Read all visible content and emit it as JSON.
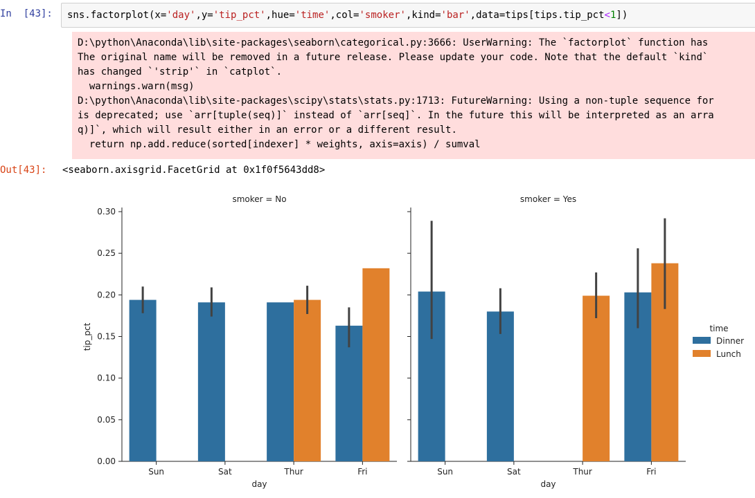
{
  "cell": {
    "in_prompt": "In  [43]:",
    "code_tokens": [
      {
        "t": "sns.factorplot(x=",
        "c": ""
      },
      {
        "t": "'day'",
        "c": "str"
      },
      {
        "t": ",y=",
        "c": ""
      },
      {
        "t": "'tip_pct'",
        "c": "str"
      },
      {
        "t": ",hue=",
        "c": ""
      },
      {
        "t": "'time'",
        "c": "str"
      },
      {
        "t": ",col=",
        "c": ""
      },
      {
        "t": "'smoker'",
        "c": "str"
      },
      {
        "t": ",kind=",
        "c": ""
      },
      {
        "t": "'bar'",
        "c": "str"
      },
      {
        "t": ",data=tips[tips.tip_pct",
        "c": ""
      },
      {
        "t": "<",
        "c": "op"
      },
      {
        "t": "1",
        "c": "num"
      },
      {
        "t": "])",
        "c": ""
      }
    ],
    "stderr_lines": [
      "D:\\python\\Anaconda\\lib\\site-packages\\seaborn\\categorical.py:3666: UserWarning: The `factorplot` function has",
      "The original name will be removed in a future release. Please update your code. Note that the default `kind`",
      "has changed `'strip'` in `catplot`.",
      "  warnings.warn(msg)",
      "D:\\python\\Anaconda\\lib\\site-packages\\scipy\\stats\\stats.py:1713: FutureWarning: Using a non-tuple sequence for",
      "is deprecated; use `arr[tuple(seq)]` instead of `arr[seq]`. In the future this will be interpreted as an arra",
      "q)]`, which will result either in an error or a different result.",
      "  return np.add.reduce(sorted[indexer] * weights, axis=axis) / sumval"
    ],
    "out_prompt": "Out[43]:",
    "out_text": "<seaborn.axisgrid.FacetGrid at 0x1f0f5643dd8>"
  },
  "chart_data": {
    "type": "bar",
    "ylabel": "tip_pct",
    "ylim": [
      0,
      0.3
    ],
    "yticks": [
      "0.00",
      "0.05",
      "0.10",
      "0.15",
      "0.20",
      "0.25",
      "0.30"
    ],
    "categories": [
      "Sun",
      "Sat",
      "Thur",
      "Fri"
    ],
    "legend": {
      "title": "time",
      "position": "right",
      "entries": [
        "Dinner",
        "Lunch"
      ]
    },
    "colors": {
      "Dinner": "#2e6f9e",
      "Lunch": "#e1812c",
      "errorbar": "#424242"
    },
    "panels": [
      {
        "title": "smoker = No",
        "xlabel": "day",
        "series": [
          {
            "name": "Dinner",
            "values": [
              0.194,
              0.191,
              0.191,
              0.163
            ],
            "err_lo": [
              0.178,
              0.174,
              null,
              0.137
            ],
            "err_hi": [
              0.21,
              0.209,
              null,
              0.185
            ]
          },
          {
            "name": "Lunch",
            "values": [
              null,
              null,
              0.194,
              0.232
            ],
            "err_lo": [
              null,
              null,
              0.177,
              null
            ],
            "err_hi": [
              null,
              null,
              0.211,
              null
            ]
          }
        ]
      },
      {
        "title": "smoker = Yes",
        "xlabel": "day",
        "series": [
          {
            "name": "Dinner",
            "values": [
              0.204,
              0.18,
              null,
              0.203
            ],
            "err_lo": [
              0.147,
              0.153,
              null,
              0.16
            ],
            "err_hi": [
              0.289,
              0.208,
              null,
              0.256
            ]
          },
          {
            "name": "Lunch",
            "values": [
              null,
              null,
              0.199,
              0.238
            ],
            "err_lo": [
              null,
              null,
              0.172,
              0.183
            ],
            "err_hi": [
              null,
              null,
              0.227,
              0.292
            ]
          }
        ]
      }
    ]
  }
}
